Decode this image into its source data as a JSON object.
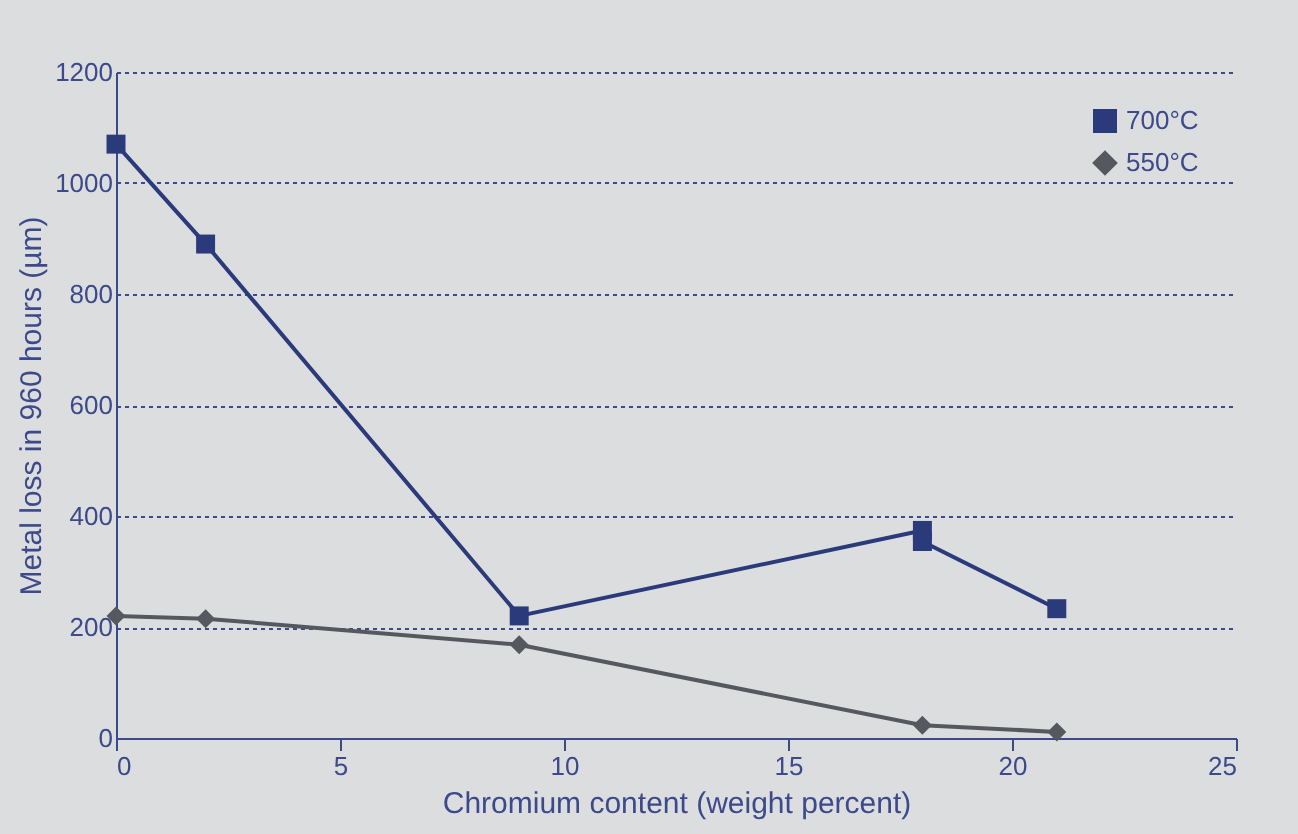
{
  "chart_data": {
    "type": "line",
    "xlabel": "Chromium content (weight percent)",
    "ylabel": "Metal loss in 960 hours (µm)",
    "series": [
      {
        "name": "700°C",
        "color": "#2b3a7a",
        "marker": "square",
        "x": [
          0,
          2,
          9,
          18,
          18,
          21
        ],
        "values": [
          1070,
          890,
          220,
          374,
          354,
          233
        ]
      },
      {
        "name": "550°C",
        "color": "#55595f",
        "marker": "diamond",
        "x": [
          0,
          2,
          9,
          18,
          21
        ],
        "values": [
          220,
          215,
          168,
          23,
          11
        ]
      }
    ],
    "xlim": [
      0,
      25
    ],
    "xticks": [
      0,
      5,
      10,
      15,
      20,
      25
    ],
    "ylim": [
      0,
      1200
    ],
    "yticks": [
      0,
      200,
      400,
      600,
      800,
      1000,
      1200
    ],
    "grid": "y",
    "legend": "top right",
    "line_style": "solid"
  }
}
